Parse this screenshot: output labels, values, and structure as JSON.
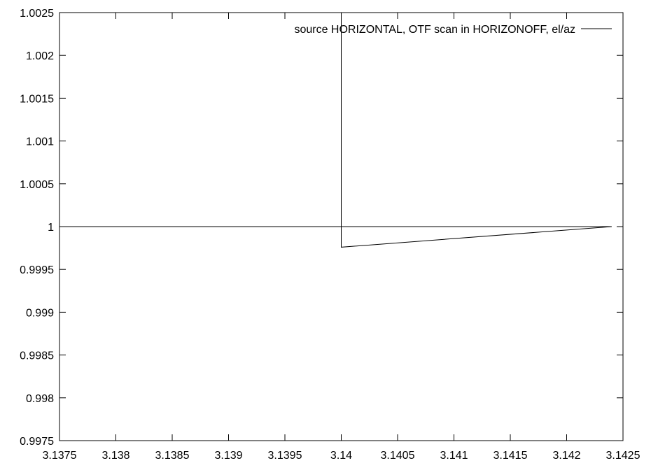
{
  "chart_data": {
    "type": "line",
    "title": "",
    "xlabel": "",
    "ylabel": "",
    "xlim": [
      3.1375,
      3.1425
    ],
    "ylim": [
      0.9975,
      1.0025
    ],
    "x_ticks": [
      "3.1375",
      "3.138",
      "3.1385",
      "3.139",
      "3.1395",
      "3.14",
      "3.1405",
      "3.141",
      "3.1415",
      "3.142",
      "3.1425"
    ],
    "y_ticks": [
      "0.9975",
      "0.998",
      "0.9985",
      "0.999",
      "0.9995",
      "1",
      "1.0005",
      "1.001",
      "1.0015",
      "1.002",
      "1.0025"
    ],
    "grid": false,
    "legend_position": "top-right",
    "series": [
      {
        "name": "source HORIZONTAL, OTF scan in HORIZONOFF, el/az",
        "color": "#000000",
        "x": [
          3.1375,
          3.1424,
          3.14,
          3.14,
          3.14,
          3.14
        ],
        "y": [
          1.0,
          1.0,
          0.99976,
          1.0,
          1.0025,
          1.0
        ]
      }
    ]
  }
}
